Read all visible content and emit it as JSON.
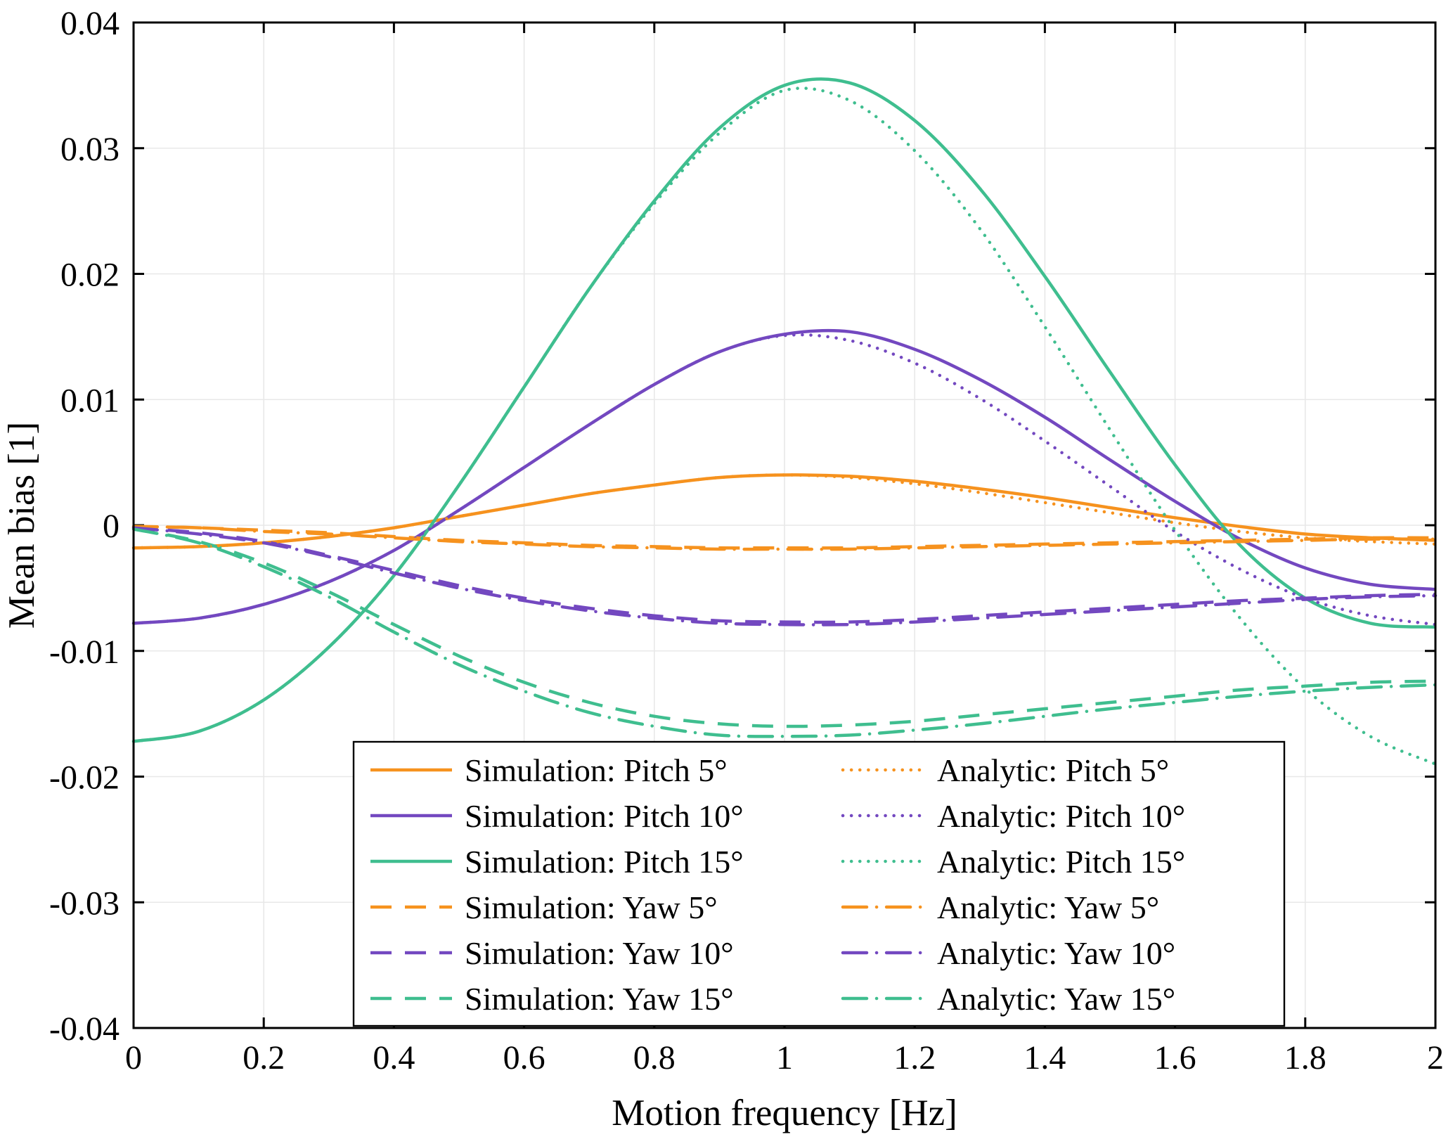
{
  "figure": {
    "background": "#ffffff",
    "axis_color": "#000000",
    "grid_color": "#e8e8e8",
    "legend_border_color": "#000000",
    "legend_background": "#ffffff"
  },
  "chart_data": {
    "type": "line",
    "xlabel": "Motion frequency [Hz]",
    "ylabel": "Mean bias [1]",
    "xlim": [
      0,
      2
    ],
    "ylim": [
      -0.04,
      0.04
    ],
    "grid": true,
    "legend_position": "inside-bottom",
    "legend_columns": 2,
    "xticks": [
      0,
      0.2,
      0.4,
      0.6,
      0.8,
      1,
      1.2,
      1.4,
      1.6,
      1.8,
      2
    ],
    "xtick_labels": [
      "0",
      "0.2",
      "0.4",
      "0.6",
      "0.8",
      "1",
      "1.2",
      "1.4",
      "1.6",
      "1.8",
      "2"
    ],
    "yticks": [
      -0.04,
      -0.03,
      -0.02,
      -0.01,
      0,
      0.01,
      0.02,
      0.03,
      0.04
    ],
    "ytick_labels": [
      "-0.04",
      "-0.03",
      "-0.02",
      "-0.01",
      "0",
      "0.01",
      "0.02",
      "0.03",
      "0.04"
    ],
    "x": [
      0,
      0.1,
      0.2,
      0.3,
      0.4,
      0.5,
      0.6,
      0.7,
      0.8,
      0.9,
      1.0,
      1.1,
      1.2,
      1.3,
      1.4,
      1.5,
      1.6,
      1.7,
      1.8,
      1.9,
      2.0
    ],
    "series": [
      {
        "name": "Simulation: Pitch 5°",
        "color": "#f6921e",
        "style": "solid",
        "values": [
          -0.0018,
          -0.0017,
          -0.0014,
          -0.0009,
          -0.0002,
          0.0007,
          0.0016,
          0.0025,
          0.0032,
          0.0038,
          0.004,
          0.0039,
          0.0035,
          0.0029,
          0.0022,
          0.0014,
          0.0006,
          -0.0001,
          -0.0007,
          -0.001,
          -0.0012
        ]
      },
      {
        "name": "Simulation: Pitch 10°",
        "color": "#7348c0",
        "style": "solid",
        "values": [
          -0.0078,
          -0.0074,
          -0.0063,
          -0.0045,
          -0.002,
          0.0012,
          0.0046,
          0.008,
          0.0112,
          0.0138,
          0.0152,
          0.0154,
          0.014,
          0.0116,
          0.0086,
          0.0052,
          0.0019,
          -0.0011,
          -0.0034,
          -0.0047,
          -0.0051
        ]
      },
      {
        "name": "Simulation: Pitch 15°",
        "color": "#3fbe8f",
        "style": "solid",
        "values": [
          -0.0172,
          -0.0164,
          -0.0139,
          -0.0097,
          -0.004,
          0.0032,
          0.011,
          0.0188,
          0.0258,
          0.0316,
          0.035,
          0.0352,
          0.0322,
          0.0268,
          0.0198,
          0.0122,
          0.0048,
          -0.0016,
          -0.0058,
          -0.0078,
          -0.0081
        ]
      },
      {
        "name": "Simulation: Yaw 5°",
        "color": "#f6921e",
        "style": "dashed",
        "values": [
          -0.0001,
          -0.0002,
          -0.0004,
          -0.0006,
          -0.0009,
          -0.0012,
          -0.0014,
          -0.0016,
          -0.0017,
          -0.0018,
          -0.0018,
          -0.0018,
          -0.0017,
          -0.0016,
          -0.0015,
          -0.0014,
          -0.0013,
          -0.0012,
          -0.0011,
          -0.001,
          -0.001
        ]
      },
      {
        "name": "Simulation: Yaw 10°",
        "color": "#7348c0",
        "style": "dashed",
        "values": [
          -0.0002,
          -0.0006,
          -0.0013,
          -0.0024,
          -0.0036,
          -0.0048,
          -0.0058,
          -0.0066,
          -0.0072,
          -0.0076,
          -0.0077,
          -0.0077,
          -0.0075,
          -0.0072,
          -0.0069,
          -0.0066,
          -0.0063,
          -0.006,
          -0.0058,
          -0.0056,
          -0.0055
        ]
      },
      {
        "name": "Simulation: Yaw 15°",
        "color": "#3fbe8f",
        "style": "dashed",
        "values": [
          -0.0003,
          -0.0013,
          -0.003,
          -0.0053,
          -0.0079,
          -0.0104,
          -0.0125,
          -0.0141,
          -0.0152,
          -0.0158,
          -0.016,
          -0.0159,
          -0.0156,
          -0.0151,
          -0.0146,
          -0.0141,
          -0.0136,
          -0.0131,
          -0.0128,
          -0.0125,
          -0.0124
        ]
      },
      {
        "name": "Analytic: Pitch 5°",
        "color": "#f6921e",
        "style": "dotted",
        "values": [
          -0.0018,
          -0.0017,
          -0.0014,
          -0.0009,
          -0.0002,
          0.0007,
          0.0016,
          0.0025,
          0.0032,
          0.0038,
          0.004,
          0.0038,
          0.0033,
          0.0026,
          0.0018,
          0.001,
          0.0002,
          -0.0005,
          -0.001,
          -0.0013,
          -0.0015
        ]
      },
      {
        "name": "Analytic: Pitch 10°",
        "color": "#7348c0",
        "style": "dotted",
        "values": [
          -0.0078,
          -0.0074,
          -0.0063,
          -0.0045,
          -0.002,
          0.0012,
          0.0046,
          0.008,
          0.0112,
          0.0138,
          0.0151,
          0.0147,
          0.0129,
          0.0101,
          0.0067,
          0.0031,
          -0.0005,
          -0.0035,
          -0.0058,
          -0.0072,
          -0.0079
        ]
      },
      {
        "name": "Analytic: Pitch 15°",
        "color": "#3fbe8f",
        "style": "dotted",
        "values": [
          -0.0172,
          -0.0164,
          -0.0139,
          -0.0097,
          -0.004,
          0.0032,
          0.011,
          0.0188,
          0.0256,
          0.0312,
          0.0346,
          0.0338,
          0.0298,
          0.0236,
          0.0158,
          0.0076,
          -0.0004,
          -0.0074,
          -0.013,
          -0.0168,
          -0.019
        ]
      },
      {
        "name": "Analytic: Yaw 5°",
        "color": "#f6921e",
        "style": "dashdot",
        "values": [
          -0.0001,
          -0.0002,
          -0.0005,
          -0.0007,
          -0.001,
          -0.0013,
          -0.0015,
          -0.0017,
          -0.0018,
          -0.0019,
          -0.0019,
          -0.0019,
          -0.0018,
          -0.0017,
          -0.0016,
          -0.0015,
          -0.0014,
          -0.0013,
          -0.0012,
          -0.0011,
          -0.0011
        ]
      },
      {
        "name": "Analytic: Yaw 10°",
        "color": "#7348c0",
        "style": "dashdot",
        "values": [
          -0.0002,
          -0.0007,
          -0.0014,
          -0.0025,
          -0.0038,
          -0.005,
          -0.006,
          -0.0068,
          -0.0074,
          -0.0078,
          -0.0079,
          -0.0079,
          -0.0077,
          -0.0074,
          -0.0071,
          -0.0068,
          -0.0065,
          -0.0062,
          -0.0059,
          -0.0057,
          -0.0056
        ]
      },
      {
        "name": "Analytic: Yaw 15°",
        "color": "#3fbe8f",
        "style": "dashdot",
        "values": [
          -0.0003,
          -0.0014,
          -0.0033,
          -0.0057,
          -0.0085,
          -0.0111,
          -0.0132,
          -0.0149,
          -0.016,
          -0.0167,
          -0.0168,
          -0.0167,
          -0.0163,
          -0.0158,
          -0.0152,
          -0.0146,
          -0.0141,
          -0.0136,
          -0.0132,
          -0.0129,
          -0.0127
        ]
      }
    ]
  }
}
